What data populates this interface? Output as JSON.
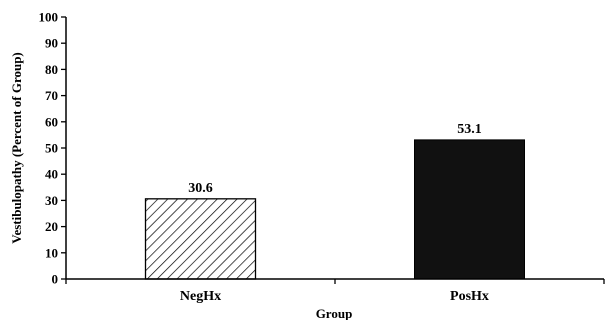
{
  "chart_data": {
    "type": "bar",
    "categories": [
      "NegHx",
      "PosHx"
    ],
    "values": [
      30.6,
      53.1
    ],
    "data_labels": [
      "30.6",
      "53.1"
    ],
    "title": "",
    "xlabel": "Group",
    "ylabel": "Vestibulopathy (Percent of Group)",
    "ylim": [
      0,
      100
    ],
    "yticks": [
      0,
      10,
      20,
      30,
      40,
      50,
      60,
      70,
      80,
      90,
      100
    ],
    "ytick_labels": [
      "0",
      "10",
      "20",
      "30",
      "40",
      "50",
      "60",
      "70",
      "80",
      "90",
      "100"
    ],
    "grid": false,
    "legend": "none",
    "bar_styles": [
      "hatched",
      "solid"
    ],
    "colors": {
      "bar_fill": "#111111",
      "axis": "#000000",
      "hatch": "#000000"
    }
  }
}
